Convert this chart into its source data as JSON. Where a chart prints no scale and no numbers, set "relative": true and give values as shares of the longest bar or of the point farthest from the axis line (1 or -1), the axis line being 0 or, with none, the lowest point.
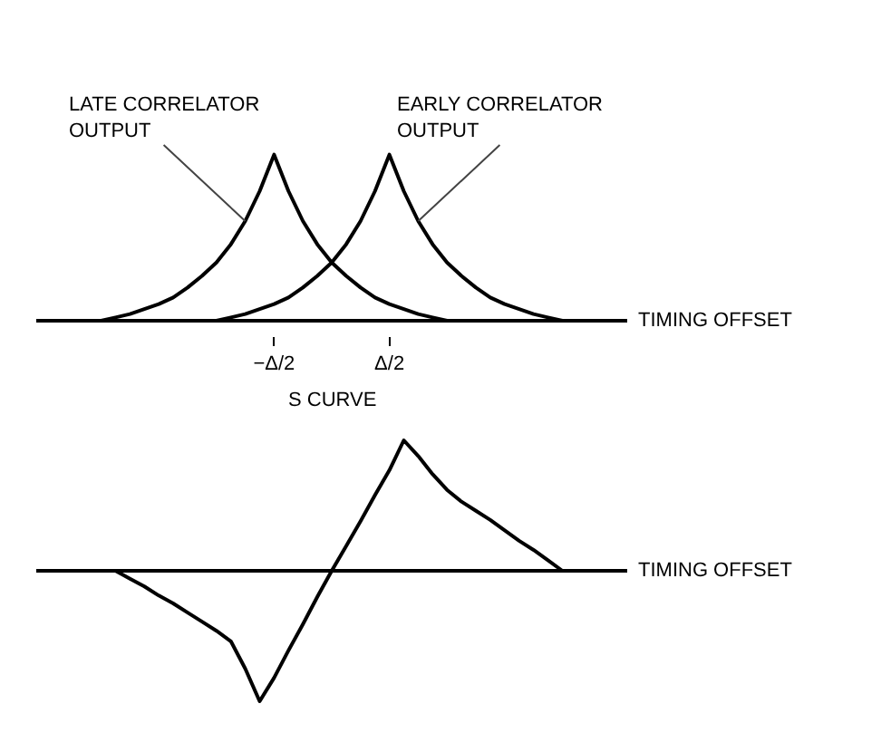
{
  "chart_data": [
    {
      "type": "line",
      "relative": true,
      "xlabel": "TIMING OFFSET",
      "grid": false,
      "legend": false,
      "tick_labels": "x",
      "categories": [
        null,
        null,
        null,
        null,
        null,
        null,
        null,
        null,
        null,
        null,
        null,
        null,
        null,
        null,
        null,
        null,
        "−Δ/2",
        null,
        null,
        null,
        null,
        null,
        null,
        null,
        "Δ/2",
        null,
        null,
        null,
        null,
        null,
        null,
        null,
        null,
        null,
        null,
        null,
        null,
        null,
        null,
        null,
        null
      ],
      "series": [
        {
          "name": "LATE CORRELATOR OUTPUT",
          "color": "#000000",
          "values": [
            null,
            null,
            null,
            null,
            0,
            0.02,
            0.04,
            0.07,
            0.1,
            0.14,
            0.2,
            0.27,
            0.35,
            0.46,
            0.6,
            0.78,
            1,
            0.78,
            0.6,
            0.46,
            0.35,
            0.27,
            0.2,
            0.14,
            0.1,
            0.07,
            0.04,
            0.02,
            0,
            null,
            null,
            null,
            null,
            null,
            null,
            null,
            null,
            null,
            null,
            null,
            null
          ]
        },
        {
          "name": "EARLY CORRELATOR OUTPUT",
          "color": "#000000",
          "values": [
            null,
            null,
            null,
            null,
            null,
            null,
            null,
            null,
            null,
            null,
            null,
            null,
            0,
            0.02,
            0.04,
            0.07,
            0.1,
            0.14,
            0.2,
            0.27,
            0.35,
            0.46,
            0.6,
            0.78,
            1,
            0.78,
            0.6,
            0.46,
            0.35,
            0.27,
            0.2,
            0.14,
            0.1,
            0.07,
            0.04,
            0.02,
            0,
            null,
            null,
            null,
            null
          ]
        }
      ]
    },
    {
      "type": "line",
      "relative": true,
      "xlabel": "TIMING OFFSET",
      "ylabel": "S CURVE",
      "grid": false,
      "legend": false,
      "tick_labels": false,
      "categories": [
        null,
        null,
        null,
        null,
        null,
        null,
        null,
        null,
        null,
        null,
        null,
        null,
        null,
        null,
        null,
        null,
        null,
        null,
        null,
        null,
        null,
        null,
        null,
        null,
        null,
        null,
        null,
        null,
        null,
        null,
        null,
        null,
        null,
        null,
        null,
        null,
        null,
        null,
        null,
        null,
        null
      ],
      "series": [
        {
          "color": "#000000",
          "values": [
            null,
            null,
            null,
            null,
            null,
            0,
            -0.06,
            -0.12,
            -0.19,
            -0.25,
            -0.32,
            -0.39,
            -0.46,
            -0.54,
            -0.75,
            -1,
            -0.82,
            -0.61,
            -0.41,
            -0.2,
            0,
            0.19,
            0.38,
            0.58,
            0.77,
            1,
            0.88,
            0.74,
            0.62,
            0.53,
            0.46,
            0.39,
            0.31,
            0.23,
            0.16,
            0.08,
            0,
            null,
            null,
            null,
            null
          ]
        }
      ]
    }
  ]
}
